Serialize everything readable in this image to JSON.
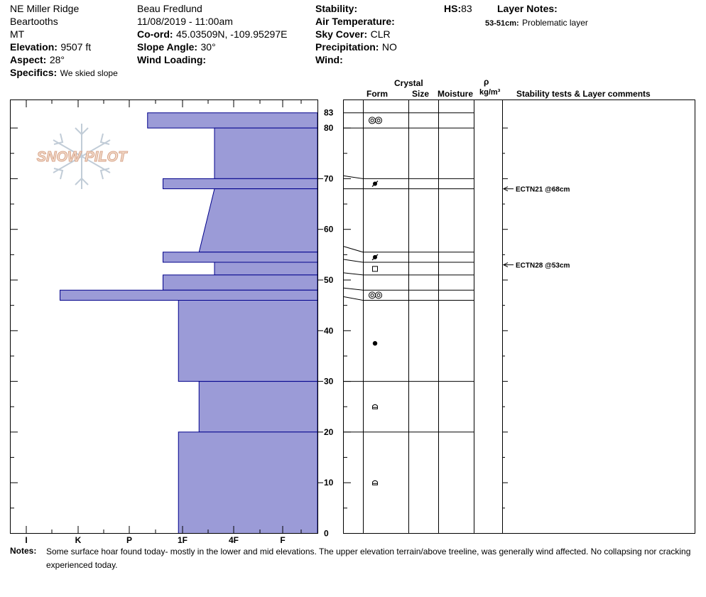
{
  "header": {
    "location": "NE Miller Ridge",
    "range": "Beartooths",
    "state": "MT",
    "elevation_label": "Elevation:",
    "elevation_value": "9507 ft",
    "aspect_label": "Aspect:",
    "aspect_value": "28°",
    "specifics_label": "Specifics:",
    "specifics_value": "We skied slope",
    "observer": "Beau  Fredlund",
    "datetime": "11/08/2019 - 11:00am",
    "coord_label": "Co-ord:",
    "coord_value": "45.03509N, -109.95297E",
    "slope_label": "Slope Angle:",
    "slope_value": "30°",
    "wind_loading_label": "Wind Loading:",
    "wind_loading_value": "",
    "stability_label": "Stability:",
    "stability_value": "",
    "air_temp_label": "Air Temperature:",
    "air_temp_value": "",
    "sky_label": "Sky Cover:",
    "sky_value": "CLR",
    "precip_label": "Precipitation:",
    "precip_value": "NO",
    "wind_label": "Wind:",
    "wind_value": "",
    "hs_label": "HS:",
    "hs_value": "83",
    "layer_notes_label": "Layer Notes:",
    "layer_note_range": "53-51cm:",
    "layer_note_text": "Problematic layer"
  },
  "logo_text": "SNOW PILOT",
  "columns": {
    "crystal": "Crystal",
    "form": "Form",
    "size": "Size",
    "moisture": "Moisture",
    "rho": "ρ",
    "density": "kg/m³",
    "comments": "Stability tests & Layer comments"
  },
  "notes_label": "Notes:",
  "notes_line1": "Some surface hoar found today- mostly in the lower and mid elevations.  The upper elevation terrain/above treeline, was generally wind affected.  No collapsing nor cracking",
  "notes_line2": "experienced today.",
  "colors": {
    "hardness_fill": "#9b9bd7",
    "hardness_stroke": "#00008b"
  },
  "chart_data": {
    "type": "bar",
    "title": "",
    "xlabel": "",
    "ylabel": "",
    "x_categories": [
      "I",
      "K",
      "P",
      "1F",
      "4F",
      "F"
    ],
    "x_scale": "hand hardness index, right edge = 0, F = 1, 4F = 2, 1F = 3, P = 4, K = 5, I = 6",
    "ylim": [
      0,
      83
    ],
    "y_ticks": [
      0,
      10,
      20,
      30,
      40,
      50,
      60,
      70,
      80,
      83
    ],
    "y_tick_labels": [
      "0",
      "10",
      "20",
      "30",
      "40",
      "50",
      "60",
      "70",
      "80",
      "83"
    ],
    "hardness_profile": [
      {
        "top": 83,
        "bottom": 80,
        "hardness_top": 3.3,
        "hardness_bottom": 3.3
      },
      {
        "top": 80,
        "bottom": 70,
        "hardness_top": 2,
        "hardness_bottom": 2
      },
      {
        "top": 70,
        "bottom": 68,
        "hardness_top": 3,
        "hardness_bottom": 3
      },
      {
        "top": 68,
        "bottom": 55.5,
        "hardness_top": 2,
        "hardness_bottom": 2.3
      },
      {
        "top": 55.5,
        "bottom": 53.5,
        "hardness_top": 3,
        "hardness_bottom": 3
      },
      {
        "top": 53.5,
        "bottom": 51,
        "hardness_top": 2,
        "hardness_bottom": 2
      },
      {
        "top": 51,
        "bottom": 48,
        "hardness_top": 3,
        "hardness_bottom": 3
      },
      {
        "top": 48,
        "bottom": 46,
        "hardness_top": 5,
        "hardness_bottom": 5
      },
      {
        "top": 46,
        "bottom": 30,
        "hardness_top": 2.7,
        "hardness_bottom": 2.7
      },
      {
        "top": 30,
        "bottom": 20,
        "hardness_top": 2.3,
        "hardness_bottom": 2.3
      },
      {
        "top": 20,
        "bottom": 0,
        "hardness_top": 2.7,
        "hardness_bottom": 2.7
      }
    ],
    "layer_boundaries": [
      83,
      80,
      70,
      68,
      55.5,
      53.5,
      51,
      48,
      46,
      30,
      20
    ],
    "grain_forms": [
      {
        "height": 81.5,
        "symbol": "surface-hoar"
      },
      {
        "height": 69,
        "symbol": "rounding-faceted"
      },
      {
        "height": 54.5,
        "symbol": "rounding-faceted"
      },
      {
        "height": 52.2,
        "symbol": "faceted"
      },
      {
        "height": 47,
        "symbol": "surface-hoar"
      },
      {
        "height": 37.5,
        "symbol": "rounded"
      },
      {
        "height": 25,
        "symbol": "melt-form"
      },
      {
        "height": 10,
        "symbol": "melt-form"
      }
    ],
    "stability_tests": [
      {
        "height": 68,
        "label": "ECTN21 @68cm"
      },
      {
        "height": 53,
        "label": "ECTN28 @53cm"
      }
    ]
  }
}
